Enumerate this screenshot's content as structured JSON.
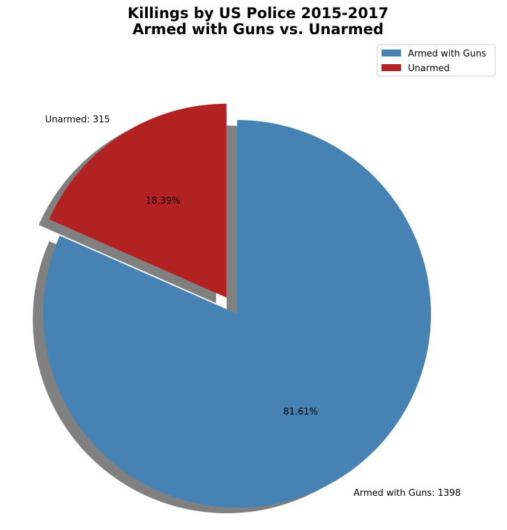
{
  "chart_data": {
    "type": "pie",
    "title": [
      "Killings by US Police 2015-2017",
      "Armed with Guns vs. Unarmed"
    ],
    "slices": [
      {
        "label": "Armed with Guns",
        "value": 1398,
        "percent_label": "81.61%",
        "outer_label": "Armed with Guns: 1398",
        "color": "#4682b4",
        "exploded": false
      },
      {
        "label": "Unarmed",
        "value": 315,
        "percent_label": "18.39%",
        "outer_label": "Unarmed: 315",
        "color": "#b22222",
        "exploded": true
      }
    ],
    "start_angle_deg": 90,
    "direction": "clockwise",
    "shadow": true,
    "shadow_color": "#808080",
    "legend": {
      "position": "top-right",
      "entries": [
        "Armed with Guns",
        "Unarmed"
      ]
    }
  }
}
